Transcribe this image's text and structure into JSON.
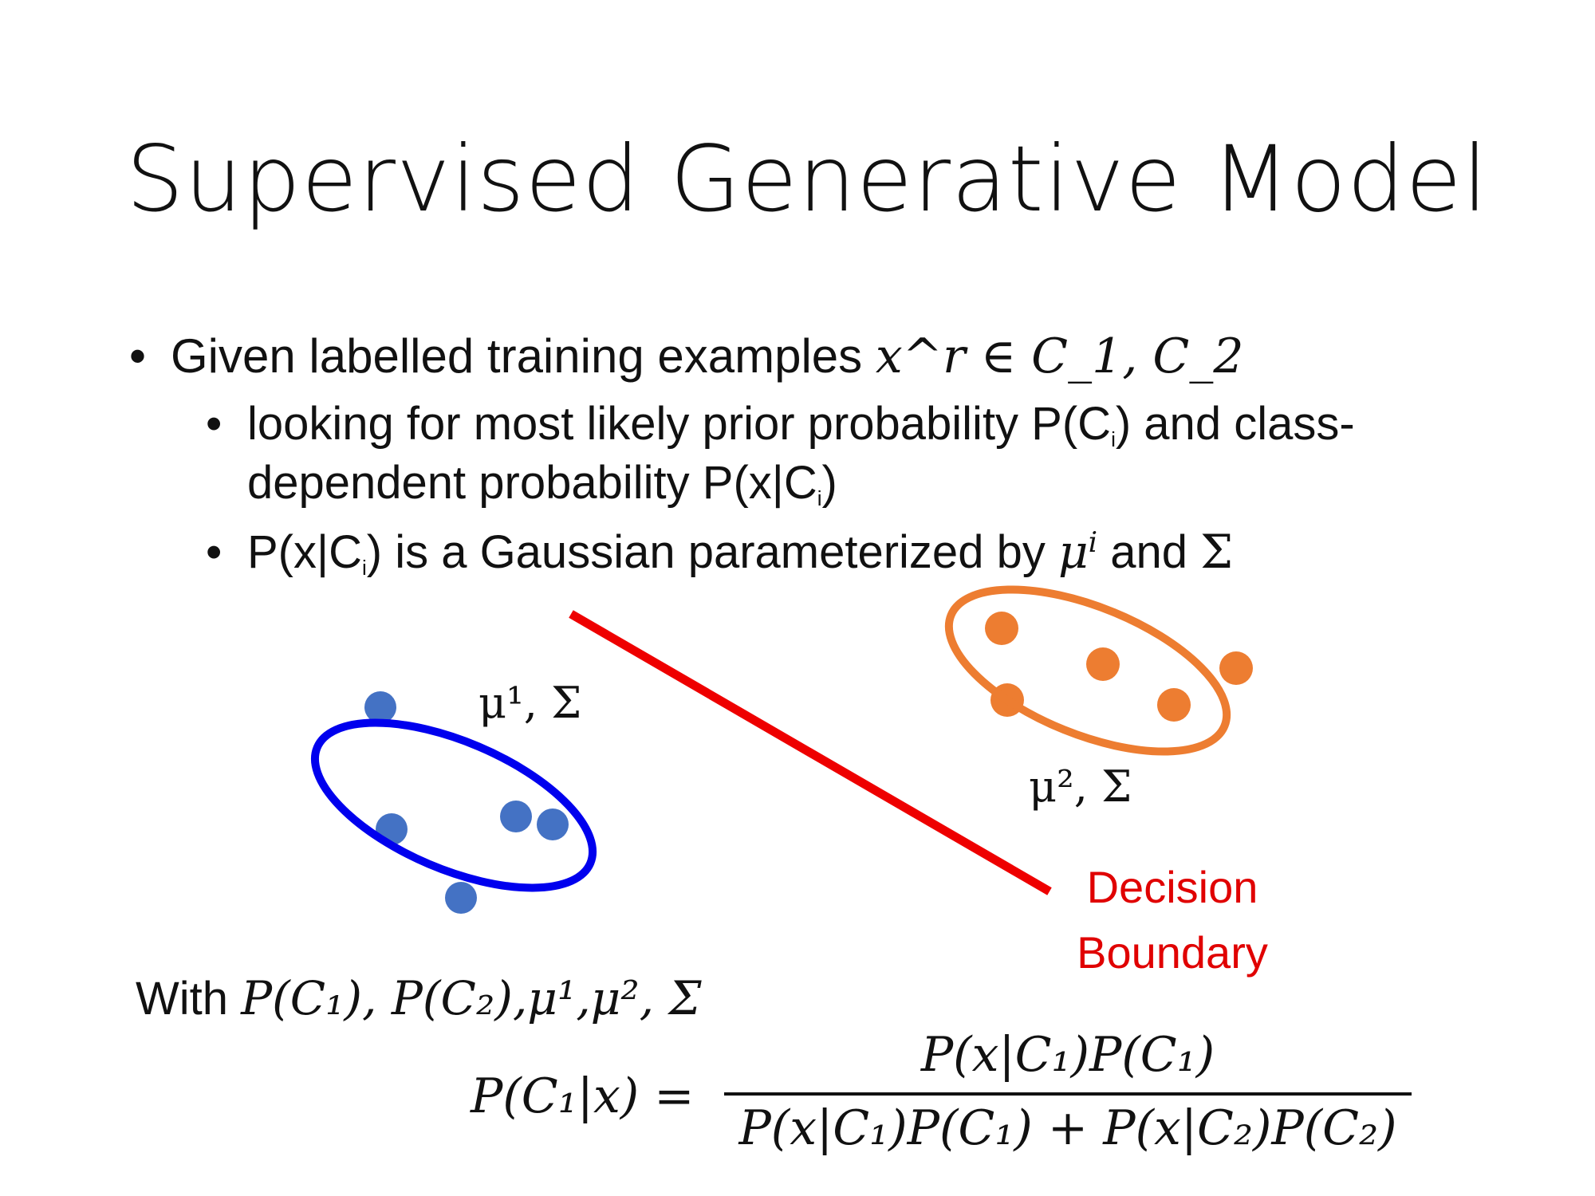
{
  "slide": {
    "title": "Supervised Generative Model",
    "bullet1": {
      "text": "Given labelled training examples ",
      "math": "x^r ∈ C_1, C_2"
    },
    "bullet2": {
      "line1": "looking for most likely prior probability P(C",
      "line1_sub": "i",
      "line1_end": ") and class-",
      "line2": "dependent probability P(x|C",
      "line2_sub": "i",
      "line2_end": ")"
    },
    "bullet3": {
      "prefix": "P(x|C",
      "sub": "i",
      "middle": ") is a Gaussian parameterized by ",
      "mu": "μ",
      "mu_sup": "i",
      "and": " and ",
      "sigma": "Σ"
    },
    "figure": {
      "class1_label": "μ¹, Σ",
      "class2_label": "μ², Σ",
      "boundary_label_line1": "Decision",
      "boundary_label_line2": "Boundary",
      "colors": {
        "class1": "#4472c4",
        "class1_ellipse": "#0000ee",
        "class2": "#ed7d31",
        "boundary": "#ee0000"
      }
    },
    "with_line": {
      "word": "With ",
      "math": "P(C₁), P(C₂),μ¹,μ², Σ"
    },
    "equation": {
      "lhs": "P(C₁|x) =",
      "numerator": "P(x|C₁)P(C₁)",
      "denominator": "P(x|C₁)P(C₁) + P(x|C₂)P(C₂)"
    }
  }
}
